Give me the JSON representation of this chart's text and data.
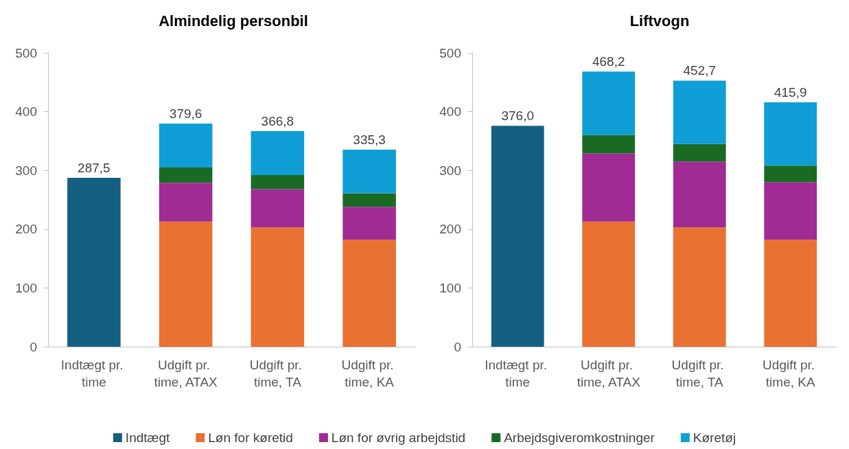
{
  "chart_data": [
    {
      "type": "bar",
      "title": "Almindelig personbil",
      "categories": [
        "Indtægt pr. time",
        "Udgift pr. time, ATAX",
        "Udgift pr. time, TA",
        "Udgift pr. time, KA"
      ],
      "stacked": true,
      "ylim": [
        0,
        500
      ],
      "yticks": [
        0,
        100,
        200,
        300,
        400,
        500
      ],
      "grid": false,
      "legend": "bottom",
      "series": [
        {
          "name": "Indtægt",
          "color": "#156082",
          "values": [
            287.5,
            null,
            null,
            null
          ]
        },
        {
          "name": "Løn for køretid",
          "color": "#e97132",
          "values": [
            null,
            213,
            203,
            182
          ]
        },
        {
          "name": "Løn for øvrig arbejdstid",
          "color": "#a02b93",
          "values": [
            null,
            66,
            65,
            56
          ]
        },
        {
          "name": "Arbejdsgiveromkostninger",
          "color": "#196b24",
          "values": [
            null,
            26,
            24,
            23
          ]
        },
        {
          "name": "Køretøj",
          "color": "#0f9ed5",
          "values": [
            null,
            74.6,
            74.8,
            74.3
          ]
        }
      ],
      "totals": [
        "287,5",
        "379,6",
        "366,8",
        "335,3"
      ]
    },
    {
      "type": "bar",
      "title": "Liftvogn",
      "categories": [
        "Indtægt pr. time",
        "Udgift pr. time, ATAX",
        "Udgift pr. time, TA",
        "Udgift pr. time, KA"
      ],
      "stacked": true,
      "ylim": [
        0,
        500
      ],
      "yticks": [
        0,
        100,
        200,
        300,
        400,
        500
      ],
      "grid": false,
      "legend": false,
      "series": [
        {
          "color": "#156082",
          "values": [
            376.0,
            null,
            null,
            null
          ]
        },
        {
          "color": "#e97132",
          "values": [
            null,
            213,
            203,
            182
          ]
        },
        {
          "color": "#a02b93",
          "values": [
            null,
            116,
            112,
            98
          ]
        },
        {
          "color": "#196b24",
          "values": [
            null,
            31,
            30,
            28
          ]
        },
        {
          "color": "#0f9ed5",
          "values": [
            null,
            108.2,
            107.7,
            107.9
          ]
        }
      ],
      "totals": [
        "376,0",
        "468,2",
        "452,7",
        "415,9"
      ]
    }
  ]
}
